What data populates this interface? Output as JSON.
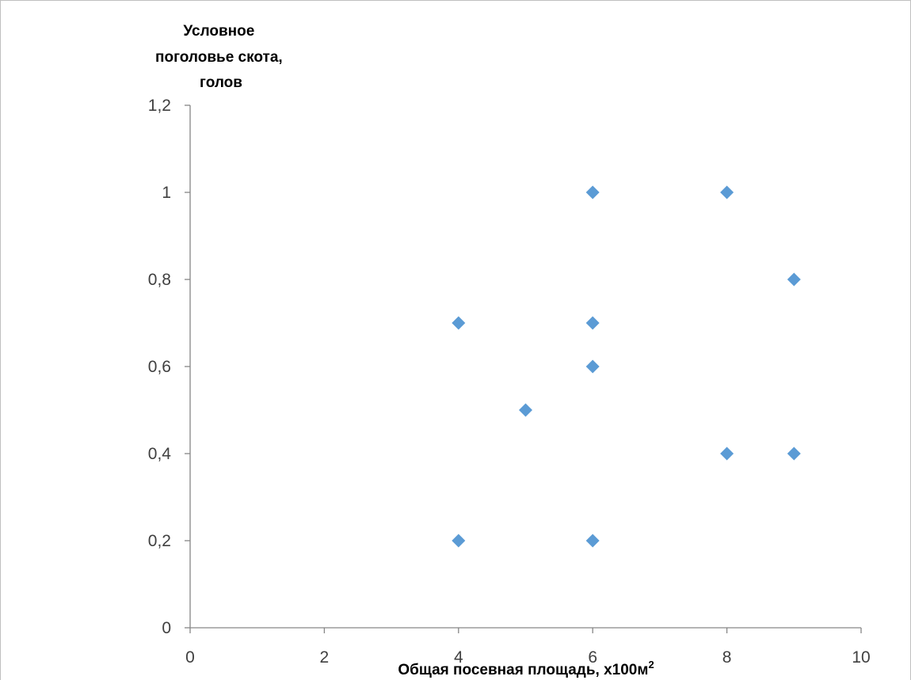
{
  "chart_data": {
    "type": "scatter",
    "title": "",
    "ylabel_lines": [
      "Условное",
      "поголовье скота,",
      "голов"
    ],
    "xlabel": "Общая посевная площадь, х100м",
    "xlabel_sup": "2",
    "xlim": [
      0,
      10
    ],
    "ylim": [
      0,
      1.2
    ],
    "x_ticks": [
      0,
      2,
      4,
      6,
      8,
      10
    ],
    "y_ticks": [
      0,
      0.2,
      0.4,
      0.6,
      0.8,
      1,
      1.2
    ],
    "x_tick_labels": [
      "0",
      "2",
      "4",
      "6",
      "8",
      "10"
    ],
    "y_tick_labels": [
      "0",
      "0,2",
      "0,4",
      "0,6",
      "0,8",
      "1",
      "1,2"
    ],
    "grid": false,
    "legend": "none",
    "marker": "diamond",
    "color": "#5B9BD5",
    "series": [
      {
        "points": [
          {
            "x": 4,
            "y": 0.7
          },
          {
            "x": 4,
            "y": 0.2
          },
          {
            "x": 5,
            "y": 0.5
          },
          {
            "x": 6,
            "y": 1.0
          },
          {
            "x": 6,
            "y": 0.7
          },
          {
            "x": 6,
            "y": 0.6
          },
          {
            "x": 6,
            "y": 0.2
          },
          {
            "x": 8,
            "y": 1.0
          },
          {
            "x": 8,
            "y": 0.4
          },
          {
            "x": 9,
            "y": 0.8
          },
          {
            "x": 9,
            "y": 0.4
          }
        ]
      }
    ]
  }
}
